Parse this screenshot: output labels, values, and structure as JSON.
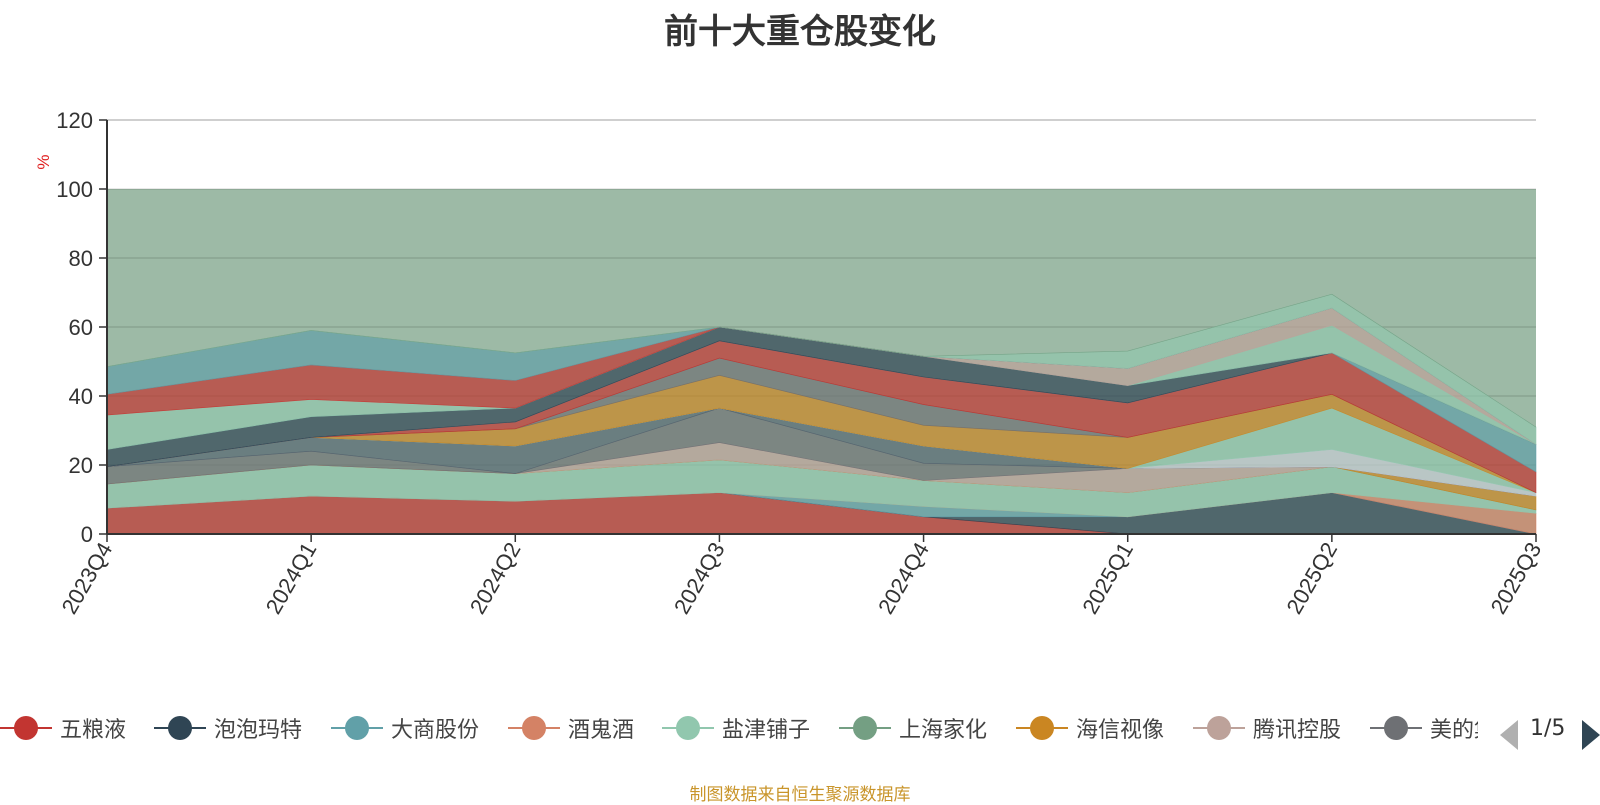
{
  "title": "前十大重仓股变化",
  "source_note": "制图数据来自恒生聚源数据库",
  "legend": {
    "items": [
      {
        "label": "五粮液",
        "color": "#c23531"
      },
      {
        "label": "泡泡玛特",
        "color": "#2f4554"
      },
      {
        "label": "大商股份",
        "color": "#61a0a8"
      },
      {
        "label": "酒鬼酒",
        "color": "#d48265"
      },
      {
        "label": "盐津铺子",
        "color": "#91c7ae"
      },
      {
        "label": "上海家化",
        "color": "#749f83"
      },
      {
        "label": "海信视像",
        "color": "#ca8622"
      },
      {
        "label": "腾讯控股",
        "color": "#bda29a"
      },
      {
        "label": "美的集团",
        "color": "#6e7074"
      }
    ],
    "page": "1/5"
  },
  "chart_data": {
    "type": "area",
    "stacked": true,
    "title": "前十大重仓股变化",
    "ylabel": "%",
    "ylim": [
      0,
      120
    ],
    "yticks": [
      "0",
      "20",
      "40",
      "60",
      "80",
      "100",
      "120"
    ],
    "categories": [
      "2023Q4",
      "2024Q1",
      "2024Q2",
      "2024Q3",
      "2024Q4",
      "2025Q1",
      "2025Q2",
      "2025Q3"
    ],
    "grid": true,
    "legend_position": "bottom",
    "series": [
      {
        "name": "五粮液",
        "color": "#c23531",
        "values": [
          7.5,
          11,
          9.5,
          12,
          5,
          0,
          0,
          0
        ]
      },
      {
        "name": "泡泡玛特",
        "color": "#2f4554",
        "values": [
          0,
          0,
          0,
          0,
          0,
          5,
          12,
          0
        ]
      },
      {
        "name": "大商股份",
        "color": "#61a0a8",
        "values": [
          0,
          0,
          0,
          0,
          3,
          0,
          0,
          0
        ]
      },
      {
        "name": "酒鬼酒",
        "color": "#d48265",
        "values": [
          0,
          0,
          0,
          0,
          0,
          0,
          0,
          6
        ]
      },
      {
        "name": "盐津铺子",
        "color": "#91c7ae",
        "values": [
          7,
          9,
          8,
          9.5,
          7.5,
          7,
          7.5,
          1
        ]
      },
      {
        "name": "上海家化",
        "color": "#749f83",
        "values": [
          0,
          0,
          0,
          0,
          0,
          0,
          0,
          0
        ]
      },
      {
        "name": "海信视像",
        "color": "#ca8622",
        "values": [
          0,
          0,
          0,
          0,
          0,
          0,
          0,
          4
        ]
      },
      {
        "name": "腾讯控股",
        "color": "#bda29a",
        "values": [
          0,
          0,
          0,
          5,
          0,
          7,
          0,
          0
        ]
      },
      {
        "name": "美的集团",
        "color": "#6e7074",
        "values": [
          5,
          4,
          0,
          10,
          5,
          0,
          0,
          0
        ]
      },
      {
        "name": "",
        "color": "#546570",
        "values": [
          0,
          4,
          8,
          0,
          5,
          0,
          0,
          0
        ]
      },
      {
        "name": "",
        "color": "#c4ccd3",
        "values": [
          0,
          0,
          0,
          0,
          0,
          0,
          5,
          1
        ]
      },
      {
        "name": "",
        "color": "#91c7ae",
        "values": [
          0,
          0,
          0,
          0,
          0,
          0,
          12,
          0
        ]
      },
      {
        "name": "",
        "color": "#ca8622",
        "values": [
          0,
          0,
          5,
          9.5,
          6,
          9,
          4,
          0
        ]
      },
      {
        "name": "",
        "color": "#6e7074",
        "values": [
          0,
          0,
          0,
          5,
          6,
          0,
          0,
          0
        ]
      },
      {
        "name": "",
        "color": "#c23531",
        "values": [
          0,
          0,
          2,
          5,
          8,
          10,
          12,
          6
        ]
      },
      {
        "name": "",
        "color": "#61a0a8",
        "values": [
          0,
          0,
          0,
          0,
          0,
          0,
          0,
          8
        ]
      },
      {
        "name": "",
        "color": "#2f4554",
        "values": [
          5,
          6,
          4,
          4,
          6,
          5,
          0,
          0
        ]
      },
      {
        "name": "",
        "color": "#91c7ae",
        "values": [
          10,
          5,
          0,
          0,
          0,
          0,
          8,
          0
        ]
      },
      {
        "name": "",
        "color": "#bda29a",
        "values": [
          0,
          0,
          0,
          0,
          0,
          5,
          5,
          0
        ]
      },
      {
        "name": "",
        "color": "#c23531",
        "values": [
          6,
          10,
          8,
          0,
          0,
          0,
          0,
          0
        ]
      },
      {
        "name": "",
        "color": "#61a0a8",
        "values": [
          8,
          10,
          8,
          0,
          0,
          0,
          0,
          0
        ]
      },
      {
        "name": "",
        "color": "#91c7ae",
        "values": [
          0,
          0,
          0,
          0,
          0,
          5,
          4,
          5
        ]
      },
      {
        "name": "",
        "color": "#749f83",
        "values": [
          0,
          0,
          0,
          0,
          0,
          0,
          0,
          0
        ]
      }
    ],
    "background_band": {
      "from": 0,
      "to": 100,
      "color": "#9dbaa6"
    }
  }
}
